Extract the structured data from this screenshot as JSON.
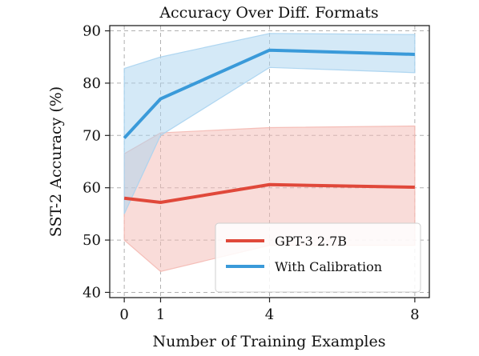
{
  "chart_data": {
    "type": "line",
    "title": "Accuracy Over Diff. Formats",
    "xlabel": "Number of Training Examples",
    "ylabel": "SST-2 Accuracy (%)",
    "x": [
      0,
      1,
      4,
      8
    ],
    "xticks": [
      "0",
      "1",
      "4",
      "8"
    ],
    "xlim": [
      -0.4,
      8.4
    ],
    "yticks": [
      "40",
      "50",
      "60",
      "70",
      "80",
      "90"
    ],
    "ylim": [
      39,
      91
    ],
    "grid": true,
    "legend_position": "bottom-right",
    "series": [
      {
        "name": "GPT-3 2.7B",
        "color": "#e0483a",
        "band_color": "#f4b9b3",
        "values": [
          58.0,
          57.2,
          60.6,
          60.1
        ],
        "lower": [
          50.0,
          44.0,
          49.0,
          49.0
        ],
        "upper": [
          66.5,
          70.5,
          71.5,
          71.8
        ]
      },
      {
        "name": "With Calibration",
        "color": "#3a9ad9",
        "band_color": "#a9d3f0",
        "values": [
          69.5,
          77.0,
          86.3,
          85.5
        ],
        "lower": [
          55.0,
          70.0,
          83.0,
          82.0
        ],
        "upper": [
          82.8,
          85.0,
          89.5,
          89.3
        ]
      }
    ]
  }
}
